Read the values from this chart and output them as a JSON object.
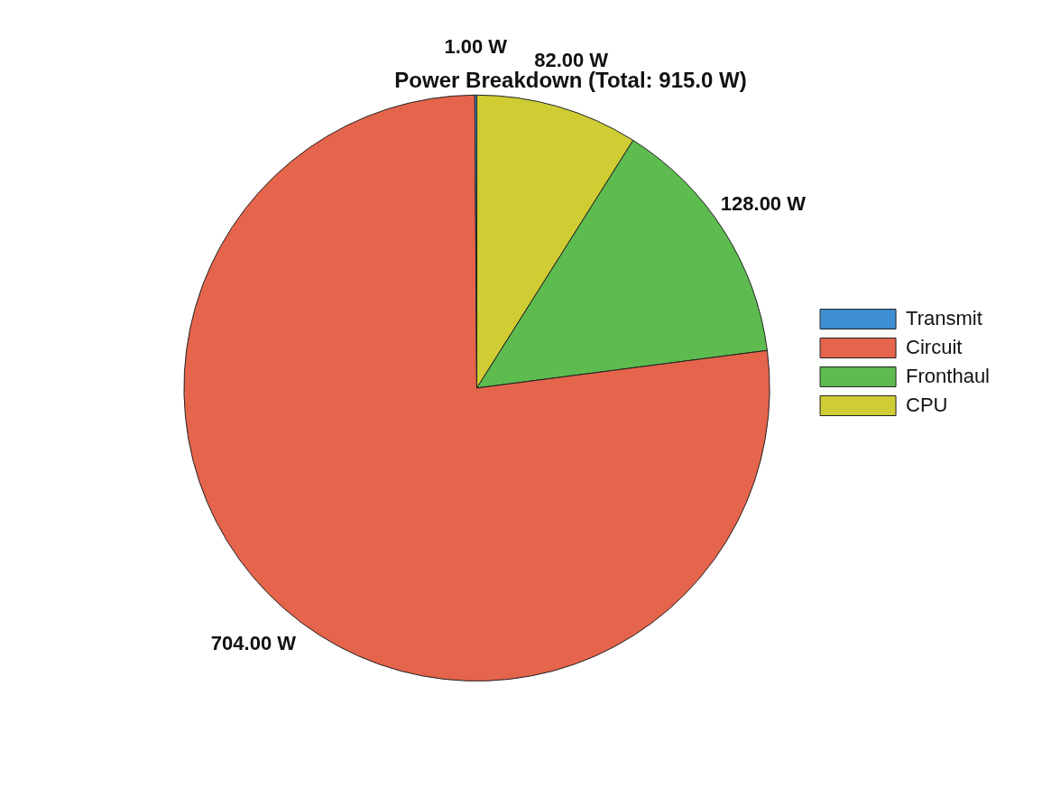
{
  "chart_data": {
    "type": "pie",
    "title": "Power Breakdown (Total: 915.0 W)",
    "categories": [
      "Transmit",
      "Circuit",
      "Fronthaul",
      "CPU"
    ],
    "values": [
      1,
      704,
      128,
      82
    ],
    "colors": [
      "#3d8fd1",
      "#e5644c",
      "#5dbb4f",
      "#cfcd33"
    ],
    "value_labels": [
      "1.00 W",
      "704.00 W",
      "128.00 W",
      "82.00 W"
    ],
    "legend": "right"
  }
}
